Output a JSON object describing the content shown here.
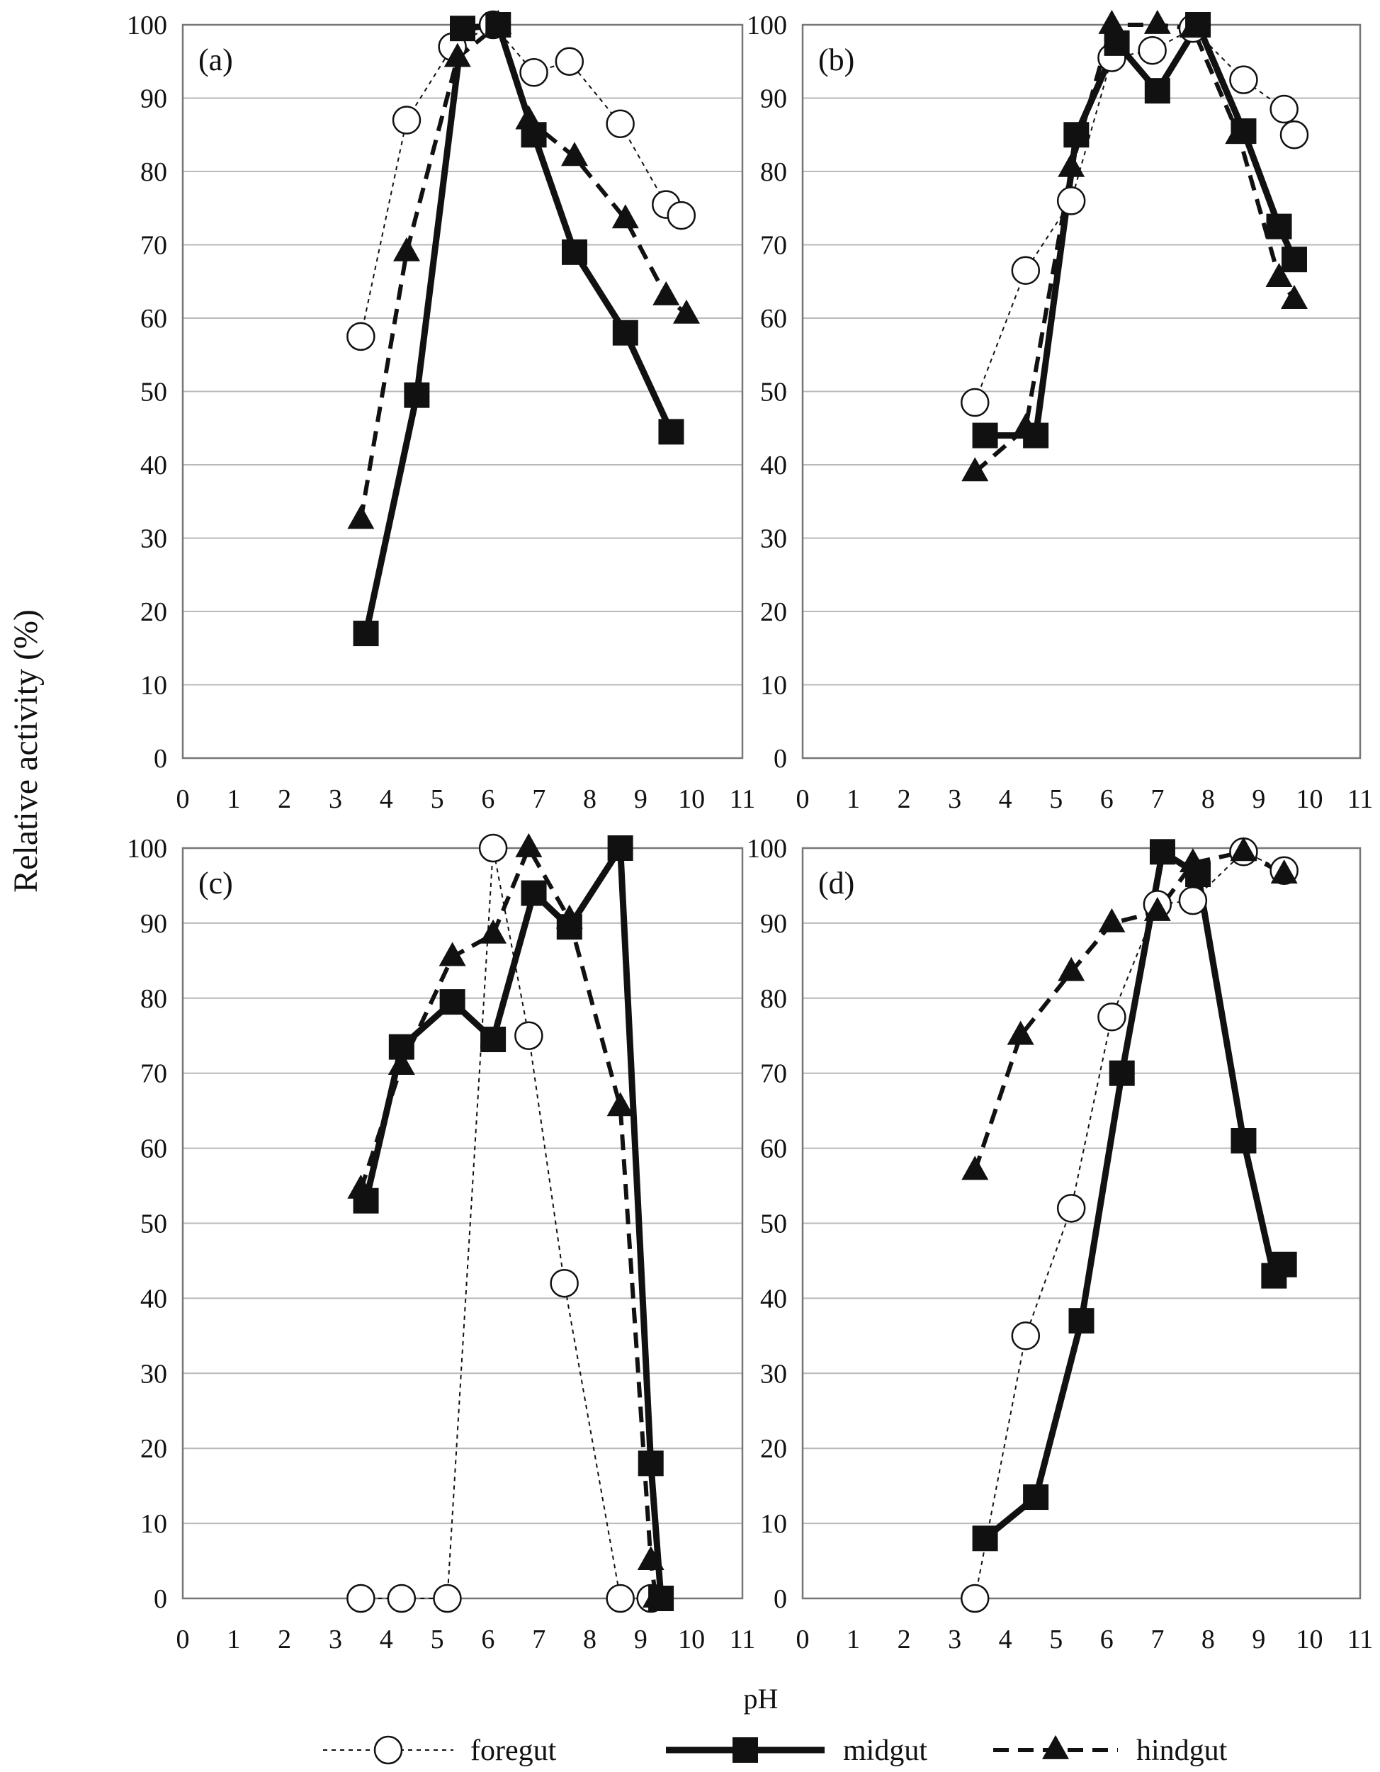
{
  "figure": {
    "ylabel": "Relative activity  (%)",
    "xlabel": "pH",
    "legend": [
      {
        "key": "foregut",
        "label": "foregut",
        "line": "thin-dotted",
        "marker": "open-circle"
      },
      {
        "key": "midgut",
        "label": "midgut",
        "line": "thick-solid",
        "marker": "filled-square"
      },
      {
        "key": "hindgut",
        "label": "hindgut",
        "line": "thick-dashed",
        "marker": "filled-triangle"
      }
    ],
    "colors": {
      "line": "#111111",
      "grid": "#b9b9b9",
      "frame": "#777777",
      "marker_fill_open": "#ffffff"
    }
  },
  "chart_data": [
    {
      "type": "line",
      "title": "(a)",
      "xlabel": "pH",
      "ylabel": "Relative activity  (%)",
      "xlim": [
        0,
        11
      ],
      "ylim": [
        0,
        100
      ],
      "xticks": [
        0,
        1,
        2,
        3,
        4,
        5,
        6,
        7,
        8,
        9,
        10,
        11
      ],
      "yticks": [
        0,
        10,
        20,
        30,
        40,
        50,
        60,
        70,
        80,
        90,
        100
      ],
      "grid": "horizontal",
      "series": [
        {
          "name": "foregut",
          "x": [
            3.5,
            4.4,
            5.3,
            6.1,
            6.9,
            7.6,
            8.6,
            9.5,
            9.8
          ],
          "y": [
            57.5,
            87,
            97,
            100,
            93.5,
            95,
            86.5,
            75.5,
            74
          ]
        },
        {
          "name": "midgut",
          "x": [
            3.6,
            4.6,
            5.5,
            6.2,
            6.9,
            7.7,
            8.7,
            9.6
          ],
          "y": [
            17,
            49.5,
            99.5,
            100,
            85,
            69,
            58,
            44.5
          ]
        },
        {
          "name": "hindgut",
          "x": [
            3.5,
            4.4,
            5.4,
            6.2,
            6.8,
            7.7,
            8.7,
            9.5,
            9.9
          ],
          "y": [
            32.5,
            69,
            95.5,
            100,
            87,
            82,
            73.5,
            63,
            60.5
          ]
        }
      ]
    },
    {
      "type": "line",
      "title": "(b)",
      "xlabel": "pH",
      "ylabel": "",
      "xlim": [
        0,
        11
      ],
      "ylim": [
        0,
        100
      ],
      "xticks": [
        0,
        1,
        2,
        3,
        4,
        5,
        6,
        7,
        8,
        9,
        10,
        11
      ],
      "yticks": [
        0,
        10,
        20,
        30,
        40,
        50,
        60,
        70,
        80,
        90,
        100
      ],
      "grid": "horizontal",
      "series": [
        {
          "name": "foregut",
          "x": [
            3.4,
            4.4,
            5.3,
            6.1,
            6.9,
            7.7,
            8.7,
            9.5,
            9.7
          ],
          "y": [
            48.5,
            66.5,
            76,
            95.5,
            96.5,
            99.5,
            92.5,
            88.5,
            85
          ]
        },
        {
          "name": "midgut",
          "x": [
            3.6,
            4.6,
            5.4,
            6.2,
            7.0,
            7.8,
            8.7,
            9.4,
            9.7
          ],
          "y": [
            44,
            44,
            85,
            97.5,
            91,
            100,
            85.5,
            72.5,
            68
          ]
        },
        {
          "name": "hindgut",
          "x": [
            3.4,
            4.4,
            5.3,
            6.1,
            7.0,
            7.7,
            8.6,
            9.4,
            9.7
          ],
          "y": [
            39,
            45,
            80.5,
            100,
            100,
            99.5,
            85,
            65.5,
            62.5
          ]
        }
      ]
    },
    {
      "type": "line",
      "title": "(c)",
      "xlabel": "pH",
      "ylabel": "",
      "xlim": [
        0,
        11
      ],
      "ylim": [
        0,
        100
      ],
      "xticks": [
        0,
        1,
        2,
        3,
        4,
        5,
        6,
        7,
        8,
        9,
        10,
        11
      ],
      "yticks": [
        0,
        10,
        20,
        30,
        40,
        50,
        60,
        70,
        80,
        90,
        100
      ],
      "grid": "horizontal",
      "series": [
        {
          "name": "foregut",
          "x": [
            3.5,
            4.3,
            5.2,
            6.1,
            6.8,
            7.5,
            8.6,
            9.2
          ],
          "y": [
            0,
            0,
            0,
            100,
            75,
            42,
            0,
            0
          ]
        },
        {
          "name": "midgut",
          "x": [
            3.6,
            4.3,
            5.3,
            6.1,
            6.9,
            7.6,
            8.6,
            9.2,
            9.4
          ],
          "y": [
            53,
            73.5,
            79.5,
            74.5,
            94,
            89.5,
            100,
            18,
            0
          ]
        },
        {
          "name": "hindgut",
          "x": [
            3.5,
            4.3,
            5.3,
            6.1,
            6.8,
            7.6,
            8.6,
            9.2,
            9.3
          ],
          "y": [
            54.5,
            71,
            85.5,
            88.5,
            100,
            90.5,
            65.5,
            5,
            0
          ]
        }
      ]
    },
    {
      "type": "line",
      "title": "(d)",
      "xlabel": "pH",
      "ylabel": "",
      "xlim": [
        0,
        11
      ],
      "ylim": [
        0,
        100
      ],
      "xticks": [
        0,
        1,
        2,
        3,
        4,
        5,
        6,
        7,
        8,
        9,
        10,
        11
      ],
      "yticks": [
        0,
        10,
        20,
        30,
        40,
        50,
        60,
        70,
        80,
        90,
        100
      ],
      "grid": "horizontal",
      "series": [
        {
          "name": "foregut",
          "x": [
            3.4,
            4.4,
            5.3,
            6.1,
            7.0,
            7.7,
            8.7,
            9.5
          ],
          "y": [
            0,
            35,
            52,
            77.5,
            92.5,
            93,
            99.5,
            97
          ]
        },
        {
          "name": "midgut",
          "x": [
            3.6,
            4.6,
            5.5,
            6.3,
            7.1,
            7.8,
            8.7,
            9.3,
            9.5
          ],
          "y": [
            8,
            13.5,
            37,
            70,
            99.5,
            96.5,
            61,
            43,
            44.5
          ]
        },
        {
          "name": "hindgut",
          "x": [
            3.4,
            4.3,
            5.3,
            6.1,
            7.0,
            7.7,
            8.7,
            9.5
          ],
          "y": [
            57,
            75,
            83.5,
            90,
            91.5,
            98,
            99.5,
            96.5
          ]
        }
      ]
    }
  ]
}
